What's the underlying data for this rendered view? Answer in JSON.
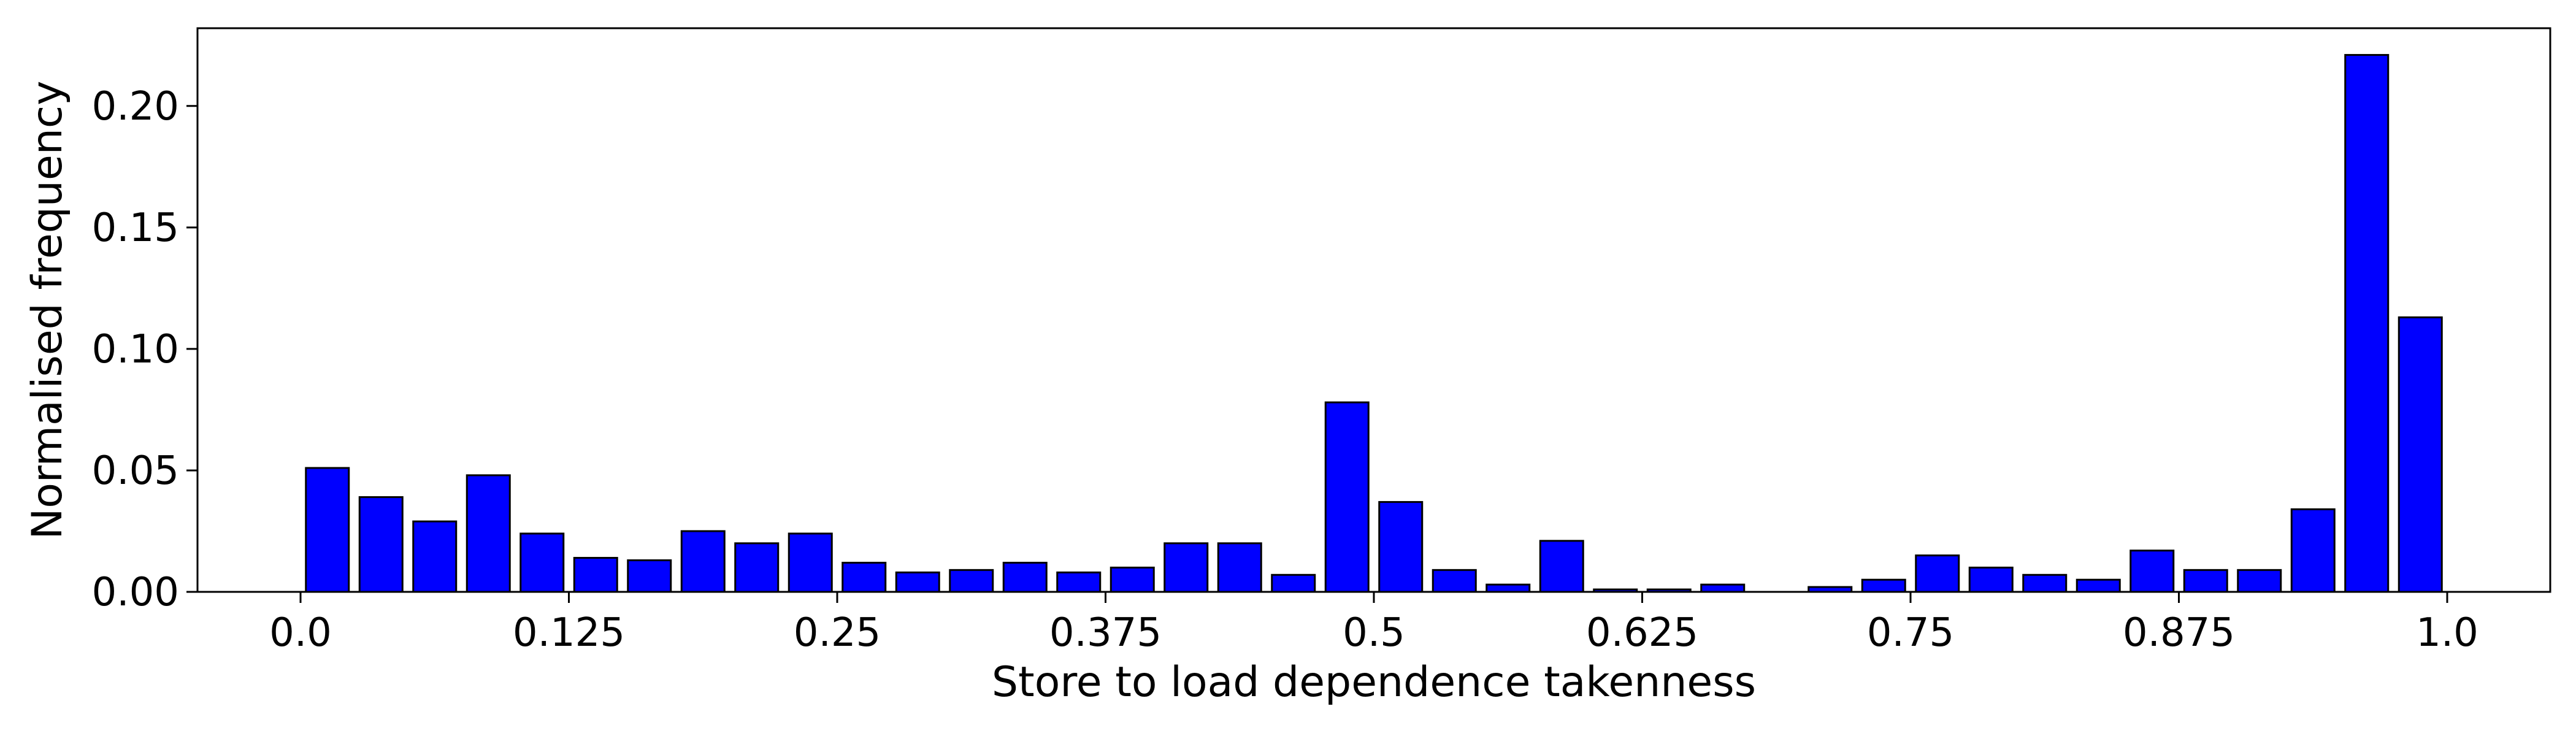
{
  "chart_data": {
    "type": "bar",
    "xlabel": "Store to load dependence takenness",
    "ylabel": "Normalised frequency",
    "xlim": [
      -0.048,
      1.048
    ],
    "ylim": [
      0,
      0.232
    ],
    "x_ticks": [
      0.0,
      0.125,
      0.25,
      0.375,
      0.5,
      0.625,
      0.75,
      0.875,
      1.0
    ],
    "x_tick_labels": [
      "0.0",
      "0.125",
      "0.25",
      "0.375",
      "0.5",
      "0.625",
      "0.75",
      "0.875",
      "1.0"
    ],
    "y_ticks": [
      0.0,
      0.05,
      0.1,
      0.15,
      0.2
    ],
    "y_tick_labels": [
      "0.00",
      "0.05",
      "0.10",
      "0.15",
      "0.20"
    ],
    "bar_width": 0.02,
    "bar_color": "#0000ff",
    "edge_color": "#000000",
    "grid": false,
    "legend": "none",
    "x": [
      0.0125,
      0.0375,
      0.0625,
      0.0875,
      0.1125,
      0.1375,
      0.1625,
      0.1875,
      0.2125,
      0.2375,
      0.2625,
      0.2875,
      0.3125,
      0.3375,
      0.3625,
      0.3875,
      0.4125,
      0.4375,
      0.4625,
      0.4875,
      0.5125,
      0.5375,
      0.5625,
      0.5875,
      0.6125,
      0.6375,
      0.6625,
      0.6875,
      0.7125,
      0.7375,
      0.7625,
      0.7875,
      0.8125,
      0.8375,
      0.8625,
      0.8875,
      0.9125,
      0.9375,
      0.9625,
      0.9875
    ],
    "values": [
      0.051,
      0.039,
      0.029,
      0.048,
      0.024,
      0.014,
      0.013,
      0.025,
      0.02,
      0.024,
      0.012,
      0.008,
      0.009,
      0.012,
      0.008,
      0.01,
      0.02,
      0.02,
      0.007,
      0.078,
      0.037,
      0.009,
      0.003,
      0.021,
      0.001,
      0.001,
      0.003,
      0.0,
      0.002,
      0.005,
      0.015,
      0.01,
      0.007,
      0.005,
      0.017,
      0.009,
      0.009,
      0.034,
      0.221,
      0.113
    ]
  }
}
